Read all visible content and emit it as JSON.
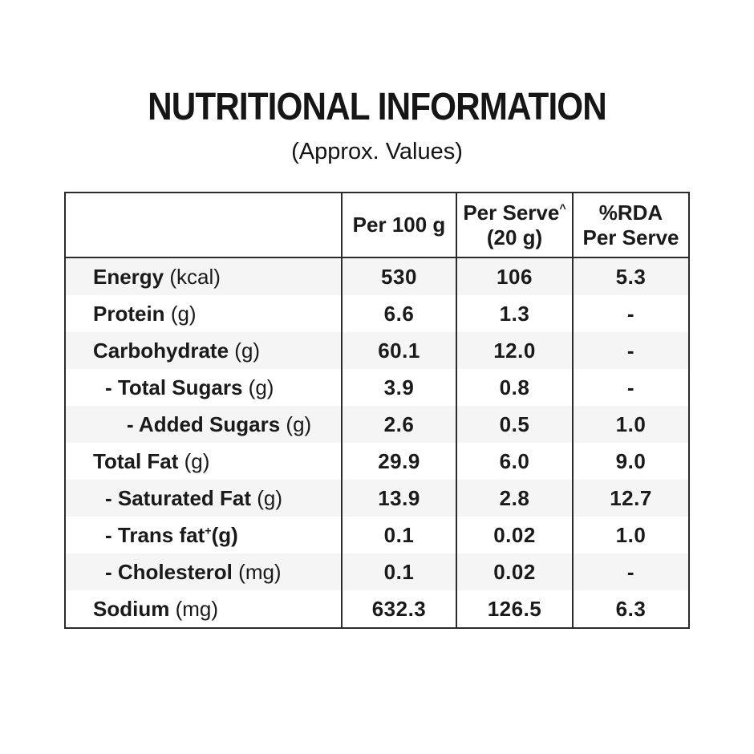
{
  "page": {
    "title": "NUTRITIONAL INFORMATION",
    "subtitle": "(Approx. Values)"
  },
  "table": {
    "header": {
      "item_col": "",
      "per_100g": "Per 100 g",
      "per_serve_line1": "Per Serve",
      "per_serve_sup": "^",
      "per_serve_line2": "(20 g)",
      "rda_line1": "%RDA",
      "rda_line2": "Per Serve"
    },
    "rows": [
      {
        "label": "Energy",
        "sup": "",
        "unit": "(kcal)",
        "unit_bold": false,
        "indent": 0,
        "shaded": true,
        "per_100g": "530",
        "per_serve": "106",
        "rda": "5.3"
      },
      {
        "label": "Protein",
        "sup": "",
        "unit": "(g)",
        "unit_bold": false,
        "indent": 0,
        "shaded": false,
        "per_100g": "6.6",
        "per_serve": "1.3",
        "rda": "-"
      },
      {
        "label": "Carbohydrate",
        "sup": "",
        "unit": "(g)",
        "unit_bold": false,
        "indent": 0,
        "shaded": true,
        "per_100g": "60.1",
        "per_serve": "12.0",
        "rda": "-"
      },
      {
        "label": "- Total Sugars",
        "sup": "",
        "unit": "(g)",
        "unit_bold": false,
        "indent": 1,
        "shaded": false,
        "per_100g": "3.9",
        "per_serve": "0.8",
        "rda": "-"
      },
      {
        "label": "- Added Sugars",
        "sup": "",
        "unit": "(g)",
        "unit_bold": false,
        "indent": 2,
        "shaded": true,
        "per_100g": "2.6",
        "per_serve": "0.5",
        "rda": "1.0"
      },
      {
        "label": "Total Fat",
        "sup": "",
        "unit": "(g)",
        "unit_bold": false,
        "indent": 0,
        "shaded": false,
        "per_100g": "29.9",
        "per_serve": "6.0",
        "rda": "9.0"
      },
      {
        "label": "- Saturated Fat",
        "sup": "",
        "unit": "(g)",
        "unit_bold": false,
        "indent": 1,
        "shaded": true,
        "per_100g": "13.9",
        "per_serve": "2.8",
        "rda": "12.7"
      },
      {
        "label": "- Trans fat",
        "sup": "+",
        "unit": "(g)",
        "unit_bold": true,
        "indent": 1,
        "shaded": false,
        "per_100g": "0.1",
        "per_serve": "0.02",
        "rda": "1.0"
      },
      {
        "label": "- Cholesterol",
        "sup": "",
        "unit": "(mg)",
        "unit_bold": false,
        "indent": 1,
        "shaded": true,
        "per_100g": "0.1",
        "per_serve": "0.02",
        "rda": "-"
      },
      {
        "label": "Sodium",
        "sup": "",
        "unit": "(mg)",
        "unit_bold": false,
        "indent": 0,
        "shaded": false,
        "per_100g": "632.3",
        "per_serve": "126.5",
        "rda": "6.3"
      }
    ],
    "colors": {
      "stripe": "#f5f5f6",
      "border": "#2b2b2b",
      "text": "#1a1a1a"
    }
  }
}
